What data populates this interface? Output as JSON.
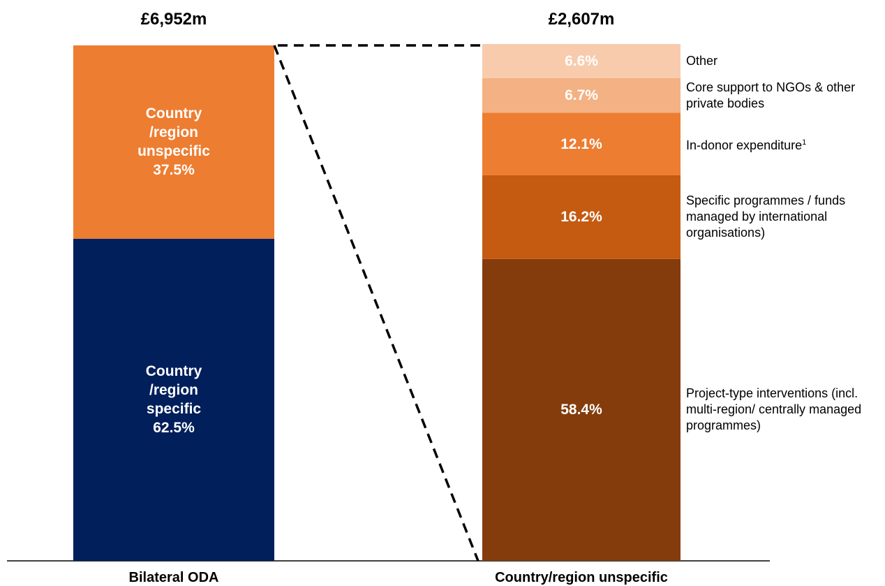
{
  "chart_data": [
    {
      "type": "stacked_bar",
      "category": "Bilateral ODA",
      "total": {
        "value": 6952,
        "label": "£6,952m"
      },
      "series": [
        {
          "name": "Country /region specific",
          "color": "#001f5b",
          "values": [
            62.5
          ],
          "value_labels": [
            "62.5%"
          ]
        },
        {
          "name": "Country /region unspecific",
          "color": "#ed7d31",
          "values": [
            37.5
          ],
          "value_labels": [
            "37.5%"
          ]
        }
      ]
    },
    {
      "type": "stacked_bar_legend",
      "category": "Country/region unspecific",
      "total": {
        "value": 2607,
        "label": "£2,607m"
      },
      "series": [
        {
          "name": "Project-type interventions (incl. multi-region/ centrally managed programmes)",
          "color": "#843c0c",
          "values": [
            58.4
          ],
          "value_labels": [
            "58.4%"
          ]
        },
        {
          "name": "Specific programmes / funds managed by international organisations)",
          "color": "#c55a11",
          "values": [
            16.2
          ],
          "value_labels": [
            "16.2%"
          ]
        },
        {
          "name": "In-donor expenditure",
          "note": "1",
          "color": "#ed7d31",
          "values": [
            12.1
          ],
          "value_labels": [
            "12.1%"
          ]
        },
        {
          "name": "Core support to NGOs & other private bodies",
          "color": "#f4b183",
          "values": [
            6.7
          ],
          "value_labels": [
            "6.7%"
          ]
        },
        {
          "name": "Other",
          "color": "#f8cbad",
          "values": [
            6.6
          ],
          "value_labels": [
            "6.6%"
          ]
        }
      ]
    }
  ]
}
